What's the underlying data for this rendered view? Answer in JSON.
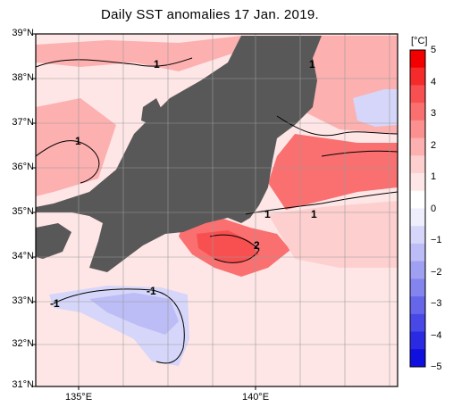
{
  "title": "Daily SST anomalies 17 Jan. 2019.",
  "lat_labels": [
    "39°N",
    "38°N",
    "37°N",
    "36°N",
    "35°N",
    "34°N",
    "33°N",
    "32°N",
    "31°N"
  ],
  "lon_labels": [
    "135°E",
    "140°E"
  ],
  "colorbar": {
    "unit": "[°C]",
    "ticks": [
      "5",
      "4",
      "3",
      "2",
      "1",
      "0",
      "−1",
      "−2",
      "−3",
      "−4",
      "−5"
    ],
    "colors": [
      "#f20000",
      "#f52b2b",
      "#f85050",
      "#fa7070",
      "#fc9090",
      "#fdb0b0",
      "#fecfcf",
      "#ffe6e6",
      "#ffffff",
      "#eeeefc",
      "#d6d6fa",
      "#bcbcf6",
      "#a0a0f2",
      "#8484ee",
      "#6666ea",
      "#4848e6",
      "#2a2ae2",
      "#0f0fde"
    ],
    "range": [
      -5,
      5
    ]
  },
  "contour_labels": [
    "1",
    "1",
    "1",
    "1",
    "1",
    "2",
    "-1",
    "-1"
  ],
  "colors": {
    "land": "#585858",
    "frame": "#000000",
    "grid": "#9a9a9a"
  }
}
